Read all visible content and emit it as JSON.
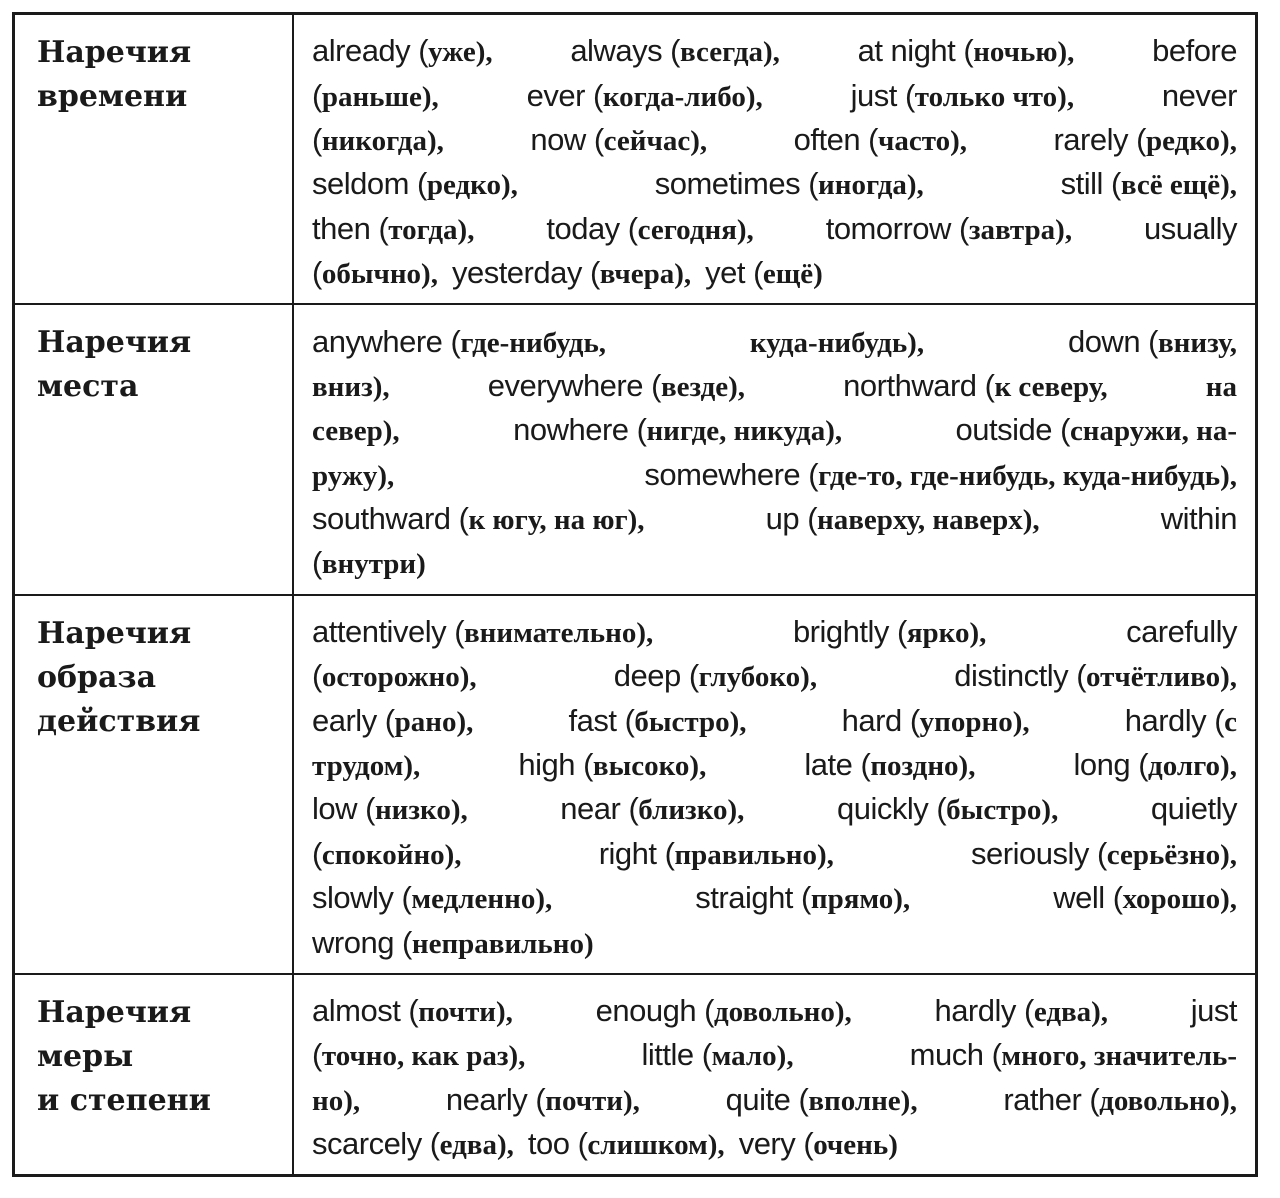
{
  "rows": [
    {
      "heading": "Наречия\nвремени",
      "lines": [
        [
          "already (уже),",
          "always (всегда),",
          "at night (ночью),",
          "before"
        ],
        [
          "(раньше),",
          "ever (когда-либо),",
          "just (только что),",
          "never"
        ],
        [
          "(никогда),",
          "now (сейчас),",
          "often (часто),",
          "rarely (редко),"
        ],
        [
          "seldom (редко),",
          "sometimes (иногда),",
          "still (всё ещё),"
        ],
        [
          "then (тогда),",
          "today (сегодня),",
          "tomorrow (завтра),",
          "usually"
        ],
        [
          "(обычно),",
          "yesterday (вчера),",
          "yet (ещё)"
        ]
      ]
    },
    {
      "heading": "Наречия\nместа",
      "lines": [
        [
          "anywhere (где-нибудь,",
          "куда-нибудь),",
          "down (внизу,"
        ],
        [
          "вниз),",
          "everywhere (везде),",
          "northward (к северу,",
          "на"
        ],
        [
          "север),",
          "nowhere (нигде, никуда),",
          "outside (снаружи, на-"
        ],
        [
          "ружу),",
          "somewhere (где-то, где-нибудь, куда-нибудь),"
        ],
        [
          "southward (к югу, на юг),",
          "up (наверху, наверх),",
          "within"
        ],
        [
          "(внутри)"
        ]
      ]
    },
    {
      "heading": "Наречия\nобраза\nдействия",
      "lines": [
        [
          "attentively (внимательно),",
          "brightly (ярко),",
          "carefully"
        ],
        [
          "(осторожно),",
          "deep (глубоко),",
          "distinctly (отчётливо),"
        ],
        [
          "early (рано),",
          "fast (быстро),",
          "hard (упорно),",
          "hardly (с"
        ],
        [
          "трудом),",
          "high (высоко),",
          "late (поздно),",
          "long (долго),"
        ],
        [
          "low (низко),",
          "near (близко),",
          "quickly (быстро),",
          "quietly"
        ],
        [
          "(спокойно),",
          "right (правильно),",
          "seriously (серьёзно),"
        ],
        [
          "slowly (медленно),",
          "straight (прямо),",
          "well (хорошо),"
        ],
        [
          "wrong (неправильно)"
        ]
      ]
    },
    {
      "heading": "Наречия\nмеры\nи степени",
      "lines": [
        [
          "almost (почти),",
          "enough (довольно),",
          "hardly (едва),",
          "just"
        ],
        [
          "(точно, как раз),",
          "little (мало),",
          "much (много, значитель-"
        ],
        [
          "но),",
          "nearly (почти),",
          "quite (вполне),",
          "rather (довольно),"
        ],
        [
          "scarcely (едва),",
          "too (слишком),",
          "very (очень)"
        ]
      ]
    }
  ]
}
